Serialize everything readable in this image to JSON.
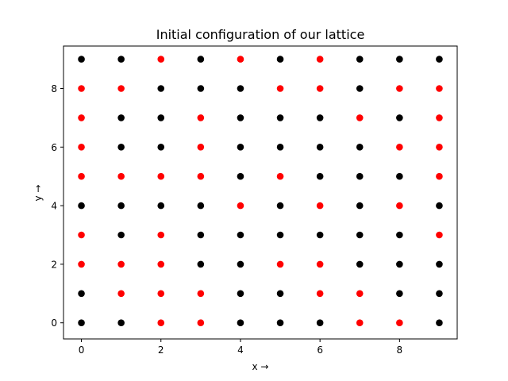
{
  "chart_data": {
    "type": "scatter",
    "title": "Initial configuration of our lattice",
    "xlabel": "x →",
    "ylabel": "y →",
    "xlim": [
      -0.45,
      9.45
    ],
    "ylim": [
      -0.55,
      9.45
    ],
    "xticks": [
      0,
      2,
      4,
      6,
      8
    ],
    "yticks": [
      0,
      2,
      4,
      6,
      8
    ],
    "grid": false,
    "colors": {
      "red": "#ff0000",
      "black": "#000000"
    },
    "grid_size": 10,
    "lattice_rows_top_to_bottom": [
      "BBRBRBRBBB",
      "RRBBBRRBRR",
      "RBBRBBBRBR",
      "RBBRBBBBRR",
      "RRRRBRBBBR",
      "BBBBRBRBRB",
      "RBRBBBBBBR",
      "RRRBBRRBBB",
      "BRRRBBRRBB",
      "BBRRBBBRRB"
    ]
  }
}
